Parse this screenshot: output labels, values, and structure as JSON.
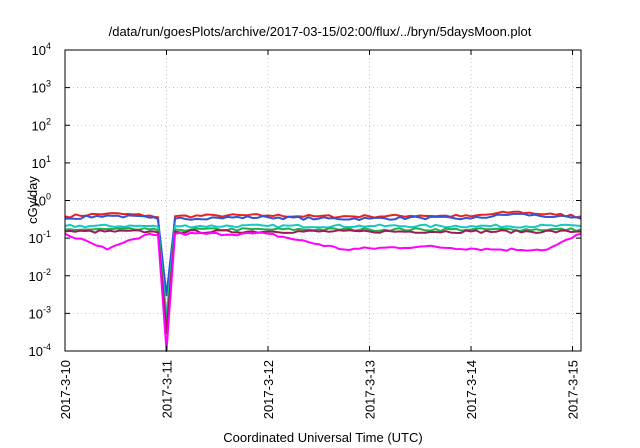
{
  "chart_data": {
    "type": "line",
    "title": "/data/run/goesPlots/archive/2017-03-15/02:00/flux/../bryn/5daysMoon.plot",
    "xlabel": "Coordinated Universal Time (UTC)",
    "ylabel": "cGy/day",
    "yscale": "log",
    "ylim": [
      0.0001,
      10000
    ],
    "xlim": [
      "2017-03-10 00:00",
      "2017-03-15 02:00"
    ],
    "grid": true,
    "legend": "none",
    "x_ticks": [
      "2017-3-10",
      "2017-3-11",
      "2017-3-12",
      "2017-3-13",
      "2017-3-14",
      "2017-3-15"
    ],
    "y_ticks": [
      {
        "value": 0.0001,
        "base": "10",
        "exp": "-4"
      },
      {
        "value": 0.001,
        "base": "10",
        "exp": "-3"
      },
      {
        "value": 0.01,
        "base": "10",
        "exp": "-2"
      },
      {
        "value": 0.1,
        "base": "10",
        "exp": "-1"
      },
      {
        "value": 1,
        "base": "10",
        "exp": "0"
      },
      {
        "value": 10,
        "base": "10",
        "exp": "1"
      },
      {
        "value": 100,
        "base": "10",
        "exp": "2"
      },
      {
        "value": 1000,
        "base": "10",
        "exp": "3"
      },
      {
        "value": 10000,
        "base": "10",
        "exp": "4"
      }
    ],
    "series": [
      {
        "color": "#e8231f",
        "base": 0.38,
        "drop": 0.0003,
        "x": [
          "2017-03-10 00:00",
          "2017-03-10 10:00",
          "2017-03-10 20:00",
          "2017-03-10 22:00",
          "2017-03-11 00:00",
          "2017-03-11 02:00",
          "2017-03-11 12:00",
          "2017-03-12 00:00",
          "2017-03-12 12:00",
          "2017-03-13 00:00",
          "2017-03-13 12:00",
          "2017-03-14 00:00",
          "2017-03-14 10:00",
          "2017-03-14 20:00",
          "2017-03-15 02:00"
        ],
        "values": [
          0.38,
          0.45,
          0.4,
          0.36,
          0.0003,
          0.38,
          0.4,
          0.4,
          0.38,
          0.38,
          0.4,
          0.38,
          0.5,
          0.42,
          0.38
        ]
      },
      {
        "color": "#2f55d4",
        "base": 0.33,
        "drop": 0.003,
        "x": [
          "2017-03-10 00:00",
          "2017-03-10 10:00",
          "2017-03-10 20:00",
          "2017-03-10 22:00",
          "2017-03-11 00:00",
          "2017-03-11 02:00",
          "2017-03-11 12:00",
          "2017-03-12 00:00",
          "2017-03-12 12:00",
          "2017-03-13 00:00",
          "2017-03-13 12:00",
          "2017-03-14 00:00",
          "2017-03-14 10:00",
          "2017-03-14 20:00",
          "2017-03-15 02:00"
        ],
        "values": [
          0.33,
          0.4,
          0.35,
          0.32,
          0.003,
          0.33,
          0.35,
          0.36,
          0.33,
          0.33,
          0.35,
          0.33,
          0.44,
          0.37,
          0.33
        ]
      },
      {
        "color": "#17c6c6",
        "base": 0.21,
        "drop": 0.0008,
        "x": [
          "2017-03-10 00:00",
          "2017-03-10 20:00",
          "2017-03-10 22:00",
          "2017-03-11 00:00",
          "2017-03-11 02:00",
          "2017-03-12 00:00",
          "2017-03-13 00:00",
          "2017-03-14 00:00",
          "2017-03-15 02:00"
        ],
        "values": [
          0.21,
          0.21,
          0.2,
          0.0008,
          0.21,
          0.21,
          0.21,
          0.21,
          0.21
        ]
      },
      {
        "color": "#1fb04a",
        "base": 0.17,
        "drop": 0.0005,
        "x": [
          "2017-03-10 00:00",
          "2017-03-10 20:00",
          "2017-03-10 22:00",
          "2017-03-11 00:00",
          "2017-03-11 02:00",
          "2017-03-12 00:00",
          "2017-03-13 00:00",
          "2017-03-14 00:00",
          "2017-03-15 02:00"
        ],
        "values": [
          0.17,
          0.17,
          0.16,
          0.0005,
          0.17,
          0.17,
          0.17,
          0.17,
          0.17
        ]
      },
      {
        "color": "#9b1b55",
        "base": 0.15,
        "drop": 0.0003,
        "x": [
          "2017-03-10 00:00",
          "2017-03-10 20:00",
          "2017-03-10 22:00",
          "2017-03-11 00:00",
          "2017-03-11 02:00",
          "2017-03-12 00:00",
          "2017-03-13 00:00",
          "2017-03-14 00:00",
          "2017-03-15 02:00"
        ],
        "values": [
          0.15,
          0.15,
          0.14,
          0.0003,
          0.15,
          0.15,
          0.15,
          0.15,
          0.15
        ]
      },
      {
        "color": "#ff00ff",
        "base": 0.13,
        "drop": 0.0001,
        "x": [
          "2017-03-10 00:00",
          "2017-03-10 10:00",
          "2017-03-10 20:00",
          "2017-03-10 22:00",
          "2017-03-11 00:00",
          "2017-03-11 02:00",
          "2017-03-12 00:00",
          "2017-03-12 18:00",
          "2017-03-13 12:00",
          "2017-03-14 06:00",
          "2017-03-14 18:00",
          "2017-03-15 02:00"
        ],
        "values": [
          0.13,
          0.05,
          0.13,
          0.12,
          0.0001,
          0.13,
          0.13,
          0.05,
          0.06,
          0.05,
          0.05,
          0.13
        ]
      }
    ]
  }
}
